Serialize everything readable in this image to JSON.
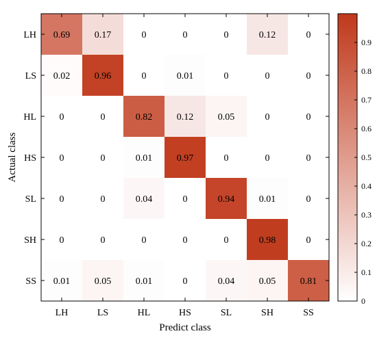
{
  "chart_data": {
    "type": "heatmap",
    "title": "",
    "xlabel": "Predict class",
    "ylabel": "Actual class",
    "x_categories": [
      "LH",
      "LS",
      "HL",
      "HS",
      "SL",
      "SH",
      "SS"
    ],
    "y_categories": [
      "LH",
      "LS",
      "HL",
      "HS",
      "SL",
      "SH",
      "SS"
    ],
    "values": [
      [
        0.69,
        0.17,
        0,
        0,
        0,
        0.12,
        0
      ],
      [
        0.02,
        0.96,
        0,
        0.01,
        0,
        0,
        0
      ],
      [
        0,
        0,
        0.82,
        0.12,
        0.05,
        0,
        0
      ],
      [
        0,
        0,
        0.01,
        0.97,
        0,
        0,
        0
      ],
      [
        0,
        0,
        0.04,
        0,
        0.94,
        0.01,
        0
      ],
      [
        0,
        0,
        0,
        0,
        0,
        0.98,
        0
      ],
      [
        0.01,
        0.05,
        0.01,
        0,
        0.04,
        0.05,
        0.81
      ]
    ],
    "colorbar": {
      "range": [
        0,
        1
      ],
      "ticks": [
        0,
        0.1,
        0.2,
        0.3,
        0.4,
        0.5,
        0.6,
        0.7,
        0.8,
        0.9
      ],
      "colors": {
        "low": "#ffffff",
        "high": "#c0391b"
      }
    }
  }
}
